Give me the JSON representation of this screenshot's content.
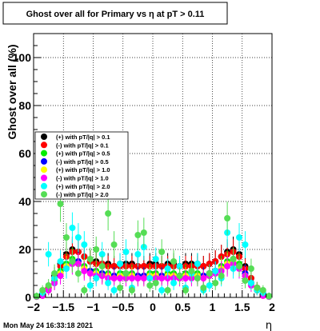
{
  "title": "Ghost over all for Primary vs   η at pT > 0.11",
  "footer_date": "Mon May 24 16:33:18 2021",
  "chart_data": {
    "type": "scatter",
    "title": "Ghost over all for Primary vs   η at pT > 0.11",
    "xlabel": "η",
    "ylabel": "Ghost over all (%)",
    "xlim": [
      -2,
      2
    ],
    "ylim": [
      0,
      110
    ],
    "x_ticks": [
      "−2",
      "−1.5",
      "−1",
      "−0.5",
      "0",
      "0.5",
      "1",
      "1.5",
      "2"
    ],
    "y_ticks": [
      "0",
      "20",
      "40",
      "60",
      "80",
      "100"
    ],
    "grid": true,
    "legend_position": "left-middle",
    "x": [
      -1.95,
      -1.85,
      -1.75,
      -1.65,
      -1.55,
      -1.45,
      -1.35,
      -1.25,
      -1.15,
      -1.05,
      -0.95,
      -0.85,
      -0.75,
      -0.65,
      -0.55,
      -0.45,
      -0.35,
      -0.25,
      -0.15,
      -0.05,
      0.05,
      0.15,
      0.25,
      0.35,
      0.45,
      0.55,
      0.65,
      0.75,
      0.85,
      0.95,
      1.05,
      1.15,
      1.25,
      1.35,
      1.45,
      1.55,
      1.65,
      1.75,
      1.85,
      1.95
    ],
    "series": [
      {
        "name": "(+) with pT/|q| > 0.1",
        "color": "#000000",
        "values": [
          0.5,
          1,
          4,
          9,
          14,
          18,
          20,
          19,
          17,
          15,
          15,
          14,
          14,
          13,
          14,
          14,
          14,
          13,
          13,
          14,
          14,
          13,
          14,
          14,
          13,
          14,
          14,
          14,
          13,
          14,
          15,
          17,
          19,
          20,
          18,
          13,
          8,
          4,
          1,
          0.5
        ]
      },
      {
        "name": "(-) with pT/|q| > 0.1",
        "color": "#ff0000",
        "values": [
          0.5,
          1,
          4,
          8,
          13,
          17,
          19,
          19,
          17,
          15,
          14,
          14,
          13,
          13,
          13,
          13,
          13,
          13,
          13,
          13,
          13,
          13,
          13,
          13,
          13,
          13,
          13,
          13,
          13,
          14,
          15,
          17,
          18,
          19,
          17,
          12,
          8,
          4,
          1,
          0.5
        ]
      },
      {
        "name": "(+) with pT/|q| > 0.5",
        "color": "#00ee00",
        "values": [
          0.3,
          0.8,
          3,
          7,
          11,
          14,
          16,
          15,
          13,
          11,
          11,
          10,
          10,
          9,
          10,
          10,
          10,
          9,
          9,
          10,
          10,
          9,
          10,
          10,
          9,
          10,
          10,
          10,
          9,
          10,
          11,
          13,
          15,
          16,
          14,
          10,
          6,
          3,
          0.8,
          0.3
        ]
      },
      {
        "name": "(-) with pT/|q| > 0.5",
        "color": "#0000ff",
        "values": [
          0.3,
          0.8,
          3,
          6,
          10,
          13,
          15,
          15,
          12,
          11,
          10,
          10,
          9,
          9,
          9,
          9,
          9,
          9,
          9,
          9,
          9,
          9,
          9,
          9,
          9,
          9,
          9,
          9,
          9,
          10,
          11,
          12,
          14,
          15,
          13,
          10,
          6,
          3,
          0.8,
          0.3
        ]
      },
      {
        "name": "(+) with pT/|q| > 1.0",
        "color": "#ffff00",
        "values": [
          0.3,
          0.7,
          3,
          6,
          10,
          13,
          15,
          14,
          12,
          10,
          10,
          9,
          9,
          8,
          9,
          9,
          9,
          8,
          8,
          9,
          9,
          8,
          9,
          9,
          8,
          9,
          9,
          9,
          8,
          9,
          10,
          12,
          14,
          15,
          13,
          9,
          5,
          3,
          0.7,
          0.3
        ]
      },
      {
        "name": "(-) with pT/|q| > 1.0",
        "color": "#ff00ff",
        "values": [
          0.3,
          0.7,
          3,
          6,
          9,
          12,
          14,
          14,
          11,
          10,
          9,
          9,
          8,
          8,
          8,
          8,
          8,
          8,
          8,
          8,
          8,
          8,
          8,
          8,
          8,
          8,
          8,
          8,
          8,
          9,
          10,
          11,
          13,
          14,
          12,
          9,
          5,
          3,
          0.7,
          0.3
        ]
      },
      {
        "name": "(+) with pT/|q| > 2.0",
        "color": "#00ffff",
        "values": [
          0.5,
          2,
          18,
          8,
          15,
          12,
          29,
          25,
          22,
          5,
          8,
          18,
          6,
          3,
          14,
          19,
          4,
          18,
          21,
          8,
          16,
          3,
          12,
          6,
          13,
          4,
          10,
          14,
          3,
          5,
          11,
          8,
          27,
          12,
          25,
          22,
          6,
          3,
          2,
          0.5
        ]
      },
      {
        "name": "(-) with pT/|q| > 2.0",
        "color": "#55dd55",
        "values": [
          0.5,
          3,
          5,
          10,
          39,
          25,
          15,
          10,
          3,
          16,
          20,
          13,
          35,
          22,
          4,
          10,
          3,
          26,
          27,
          5,
          6,
          19,
          3,
          15,
          9,
          3,
          11,
          8,
          4,
          10,
          6,
          9,
          33,
          16,
          13,
          7,
          12,
          4,
          3,
          0.5
        ]
      }
    ]
  }
}
